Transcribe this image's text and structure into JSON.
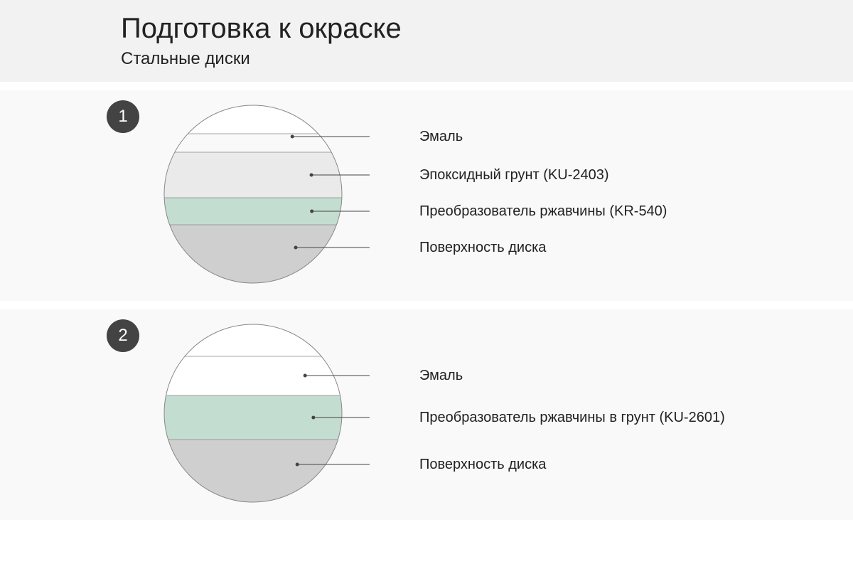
{
  "header": {
    "title": "Подготовка к окраске",
    "subtitle": "Стальные диски"
  },
  "sections": [
    {
      "badge": "1",
      "circle": {
        "radius": 125,
        "stroke": "#888888",
        "strokeWidth": 1,
        "leaderColor": "#444444",
        "leaderEndX": 290,
        "layers": [
          {
            "yTop": 0,
            "yBottom": 40,
            "fill": "#ffffff",
            "label": "Эмаль",
            "leaderY": 44
          },
          {
            "yTop": 40,
            "yBottom": 66,
            "fill": "#f9f9f9",
            "label": null,
            "leaderY": null
          },
          {
            "yTop": 66,
            "yBottom": 130,
            "fill": "#eaeaea",
            "label": "Эпоксидный грунт (KU-2403)",
            "leaderY": 98
          },
          {
            "yTop": 130,
            "yBottom": 168,
            "fill": "#c4ddd1",
            "label": "Преобразователь ржавчины (KR-540)",
            "leaderY": 149
          },
          {
            "yTop": 168,
            "yBottom": 250,
            "fill": "#cfcfcf",
            "label": "Поверхность диска",
            "leaderY": 200
          }
        ],
        "labelSpacing": 52
      }
    },
    {
      "badge": "2",
      "circle": {
        "radius": 125,
        "stroke": "#888888",
        "strokeWidth": 1,
        "leaderColor": "#444444",
        "leaderEndX": 290,
        "layers": [
          {
            "yTop": 0,
            "yBottom": 45,
            "fill": "#ffffff",
            "label": null,
            "leaderY": null
          },
          {
            "yTop": 45,
            "yBottom": 100,
            "fill": "#ffffff",
            "label": "Эмаль",
            "leaderY": 72
          },
          {
            "yTop": 100,
            "yBottom": 162,
            "fill": "#c4ddd1",
            "label": "Преобразователь ржавчины в грунт (KU-2601)",
            "leaderY": 131
          },
          {
            "yTop": 162,
            "yBottom": 250,
            "fill": "#cfcfcf",
            "label": "Поверхность диска",
            "leaderY": 197
          }
        ],
        "labelSpacing": 66
      }
    }
  ],
  "colors": {
    "pageBg": "#ffffff",
    "headerBg": "#f2f2f2",
    "sectionBg": "#f9f9f9",
    "badgeBg": "#434343",
    "badgeText": "#ffffff",
    "textColor": "#222222"
  },
  "typography": {
    "titleSize": 40,
    "subtitleSize": 24,
    "labelSize": 20,
    "badgeSize": 24
  }
}
